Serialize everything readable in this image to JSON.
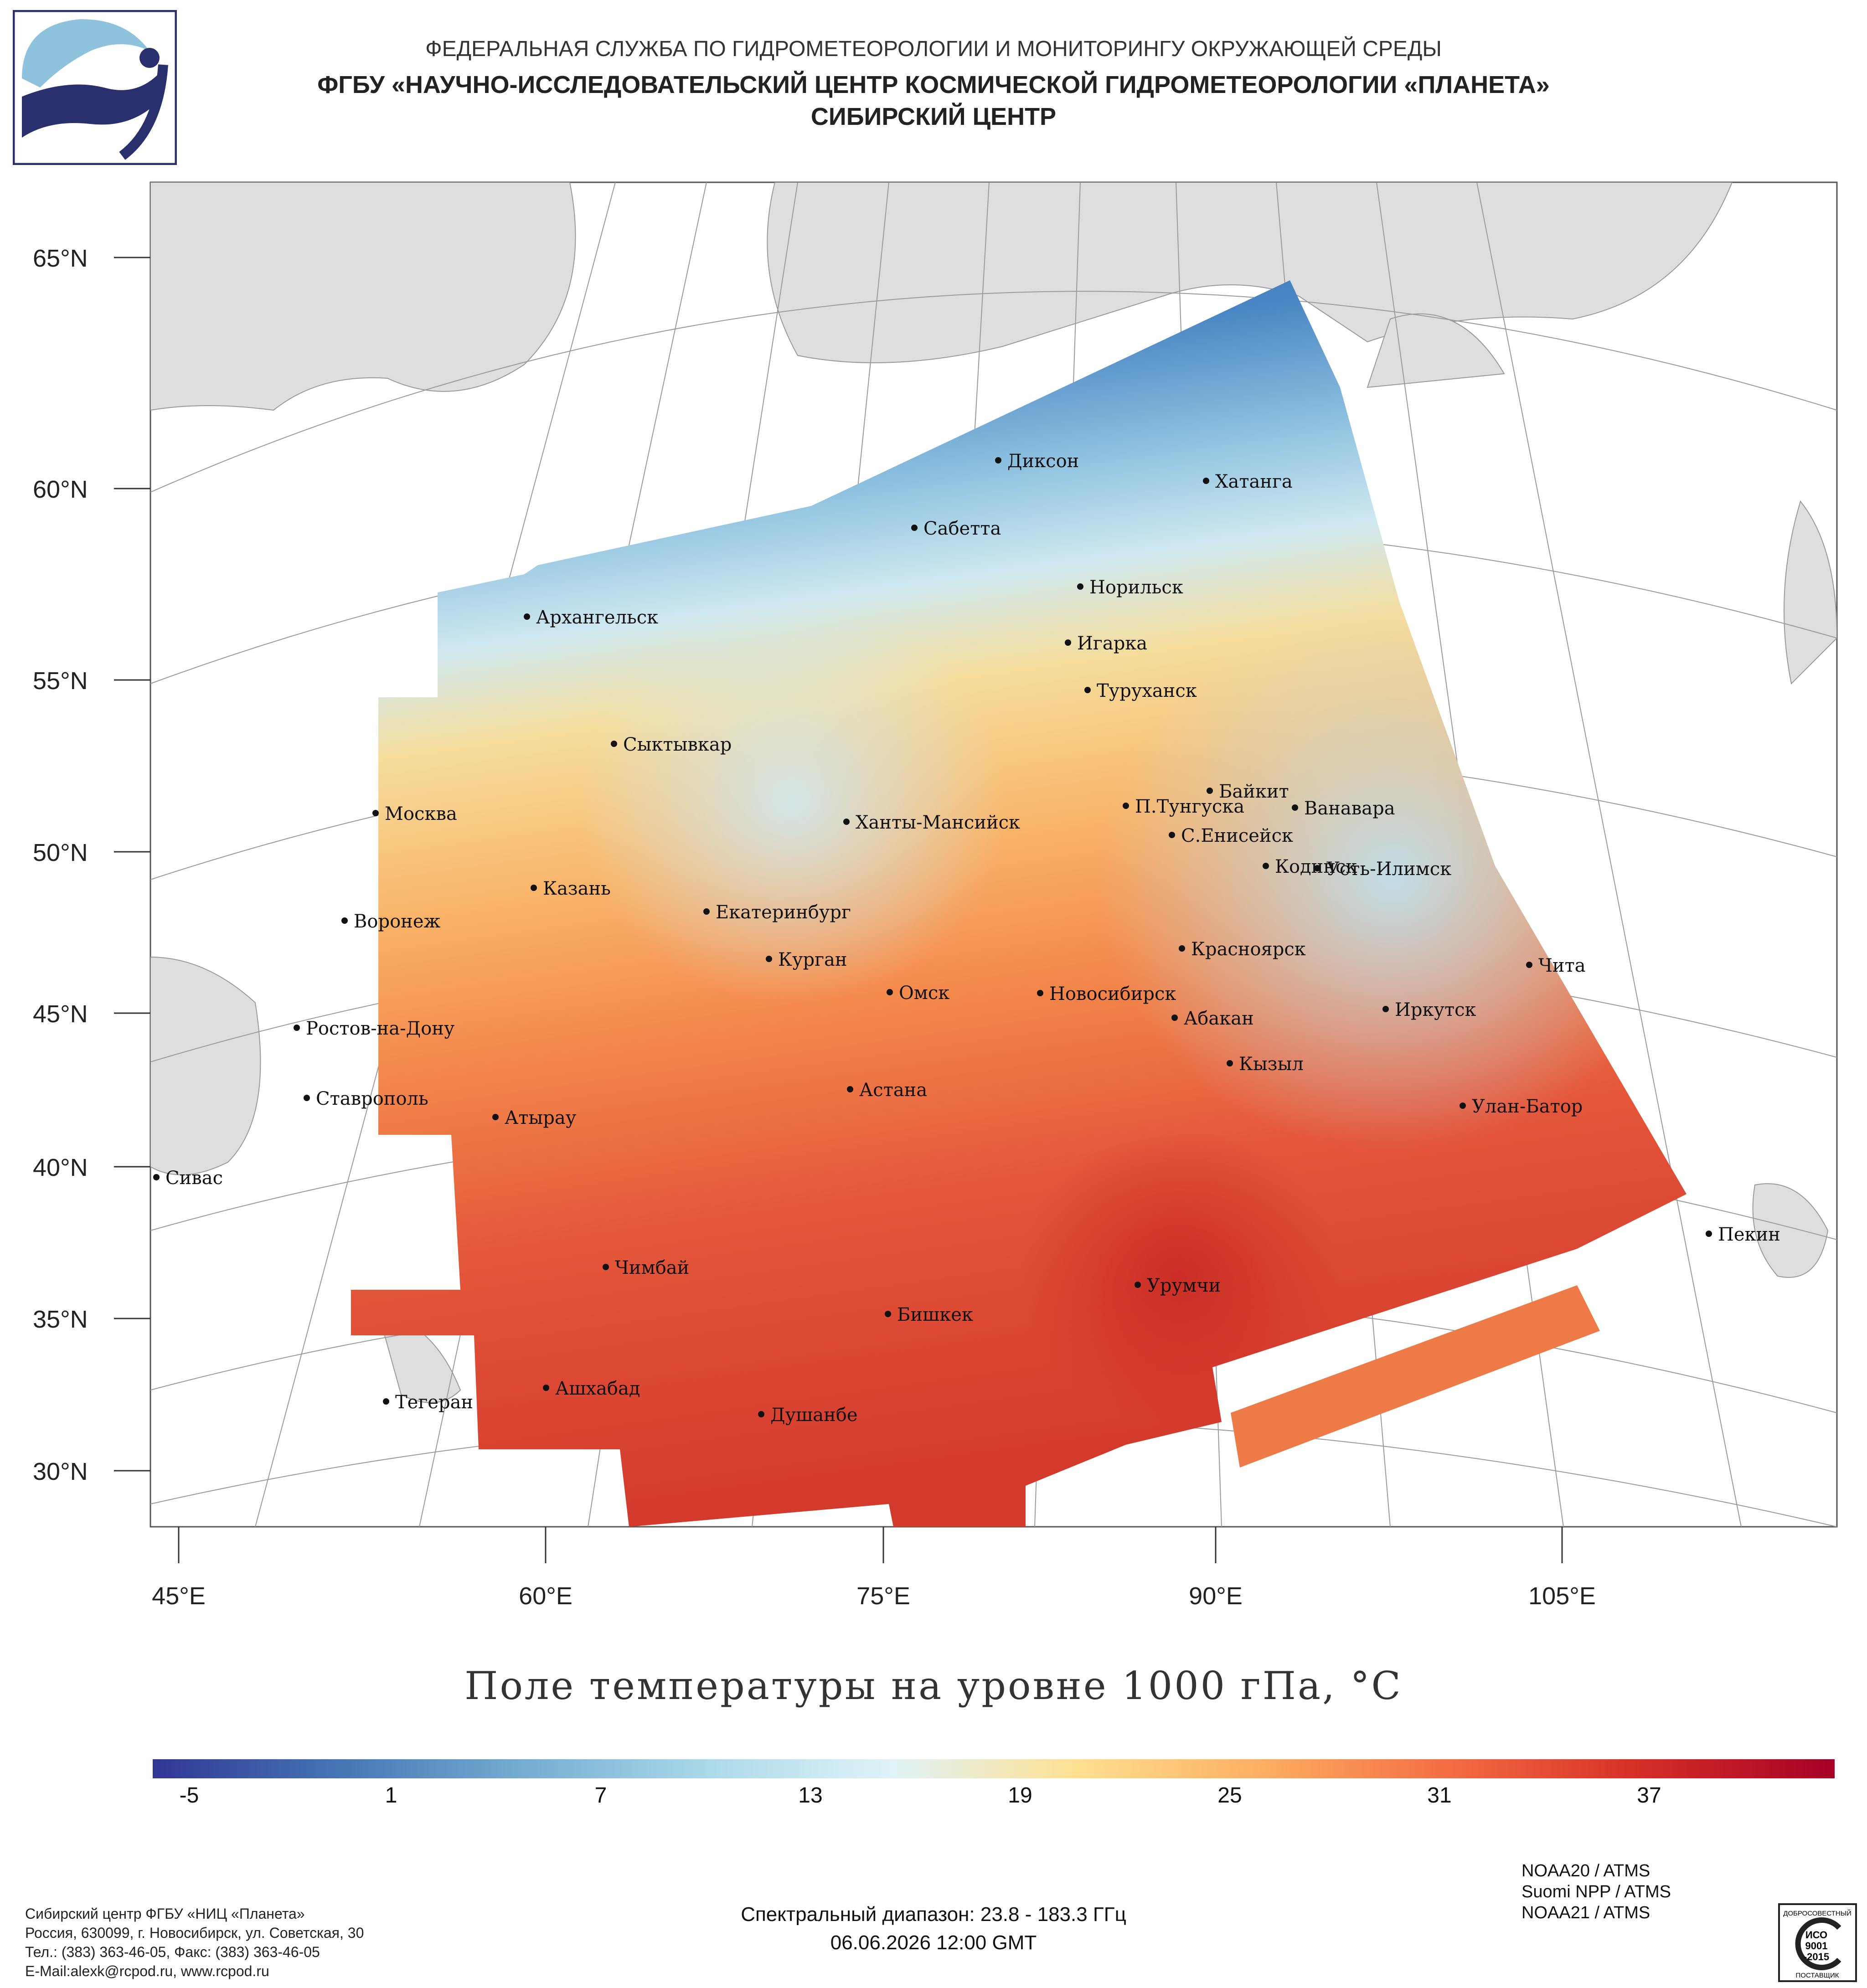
{
  "header": {
    "line1": "ФЕДЕРАЛЬНАЯ СЛУЖБА ПО ГИДРОМЕТЕОРОЛОГИИ И МОНИТОРИНГУ ОКРУЖАЮЩЕЙ СРЕДЫ",
    "line2": "ФГБУ «НАУЧНО-ИССЛЕДОВАТЕЛЬСКИЙ ЦЕНТР КОСМИЧЕСКОЙ ГИДРОМЕТЕОРОЛОГИИ «ПЛАНЕТА»",
    "line3": "СИБИРСКИЙ ЦЕНТР"
  },
  "map": {
    "lat_labels": [
      "65°N",
      "60°N",
      "55°N",
      "50°N",
      "45°N",
      "40°N",
      "35°N",
      "30°N"
    ],
    "lon_labels": [
      "45°E",
      "60°E",
      "75°E",
      "90°E",
      "105°E"
    ],
    "cities": [
      {
        "name": "Диксон",
        "lon": 80.5,
        "lat": 73.5
      },
      {
        "name": "Хатанга",
        "lon": 102.5,
        "lat": 72.0
      },
      {
        "name": "Сабетта",
        "lon": 72.0,
        "lat": 71.3
      },
      {
        "name": "Норильск",
        "lon": 88.2,
        "lat": 69.3
      },
      {
        "name": "Архангельск",
        "lon": 40.5,
        "lat": 64.5
      },
      {
        "name": "Игарка",
        "lon": 86.6,
        "lat": 67.5
      },
      {
        "name": "Туруханск",
        "lon": 87.9,
        "lat": 65.8
      },
      {
        "name": "Сыктывкар",
        "lon": 50.8,
        "lat": 61.7
      },
      {
        "name": "Байкит",
        "lon": 96.4,
        "lat": 61.7
      },
      {
        "name": "П.Тунгуска",
        "lon": 90.1,
        "lat": 61.6
      },
      {
        "name": "Ванавара",
        "lon": 102.3,
        "lat": 60.3
      },
      {
        "name": "Москва",
        "lon": 37.6,
        "lat": 55.8
      },
      {
        "name": "Ханты-Мансийск",
        "lon": 69.0,
        "lat": 61.0
      },
      {
        "name": "С.Енисейск",
        "lon": 92.0,
        "lat": 58.4
      },
      {
        "name": "Кодинск",
        "lon": 99.2,
        "lat": 58.6
      },
      {
        "name": "Усть-Илимск",
        "lon": 102.7,
        "lat": 58.0
      },
      {
        "name": "Казань",
        "lon": 49.1,
        "lat": 55.8
      },
      {
        "name": "Екатеринбург",
        "lon": 60.6,
        "lat": 56.8
      },
      {
        "name": "Воронеж",
        "lon": 39.2,
        "lat": 51.7
      },
      {
        "name": "Курган",
        "lon": 65.3,
        "lat": 55.4
      },
      {
        "name": "Красноярск",
        "lon": 92.9,
        "lat": 56.0
      },
      {
        "name": "Чита",
        "lon": 113.5,
        "lat": 52.0
      },
      {
        "name": "Омск",
        "lon": 73.4,
        "lat": 55.0
      },
      {
        "name": "Новосибирск",
        "lon": 82.9,
        "lat": 55.0
      },
      {
        "name": "Ростов-на-Дону",
        "lon": 39.7,
        "lat": 47.2
      },
      {
        "name": "Абакан",
        "lon": 91.4,
        "lat": 53.7
      },
      {
        "name": "Иркутск",
        "lon": 104.3,
        "lat": 52.3
      },
      {
        "name": "Кызыл",
        "lon": 94.4,
        "lat": 51.7
      },
      {
        "name": "Астана",
        "lon": 71.4,
        "lat": 51.2
      },
      {
        "name": "Ставрополь",
        "lon": 42.0,
        "lat": 45.0
      },
      {
        "name": "Атырау",
        "lon": 51.9,
        "lat": 47.1
      },
      {
        "name": "Улан-Батор",
        "lon": 106.9,
        "lat": 47.9
      },
      {
        "name": "Сивас",
        "lon": 37.0,
        "lat": 39.7
      },
      {
        "name": "Пекин",
        "lon": 116.4,
        "lat": 39.9
      },
      {
        "name": "Чимбай",
        "lon": 59.8,
        "lat": 42.9
      },
      {
        "name": "Урумчи",
        "lon": 87.6,
        "lat": 43.8
      },
      {
        "name": "Бишкек",
        "lon": 74.6,
        "lat": 42.9
      },
      {
        "name": "Ашхабад",
        "lon": 58.4,
        "lat": 37.9
      },
      {
        "name": "Тегеран",
        "lon": 51.4,
        "lat": 35.7
      },
      {
        "name": "Душанбе",
        "lon": 68.8,
        "lat": 38.6
      }
    ]
  },
  "title": "Поле температуры на уровне 1000 гПа, °C",
  "colorbar": {
    "min": -8,
    "max": 40,
    "tick_labels": [
      "-5",
      "1",
      "7",
      "13",
      "19",
      "25",
      "31",
      "37"
    ],
    "colors": [
      "#313695",
      "#4575b4",
      "#74add1",
      "#abd9e9",
      "#e0f3f8",
      "#fee090",
      "#fdae61",
      "#f46d43",
      "#d73027",
      "#a50026"
    ]
  },
  "footer": {
    "org_lines": [
      "Сибирский центр ФГБУ «НИЦ «Планета»",
      "Россия, 630099, г. Новосибирск, ул. Советская, 30",
      "Тел.: (383) 363-46-05, Факс: (383) 363-46-05",
      "E-Mail:alexk@rcpod.ru, www.rcpod.ru"
    ],
    "spectral": "Спектральный диапазон: 23.8 - 183.3 ГГц",
    "datetime": "06.06.2026 12:00 GMT",
    "instruments": [
      "NOAA20 / ATMS",
      "Suomi NPP / ATMS",
      "NOAA21 / ATMS"
    ],
    "iso_top": "ДОБРОСОВЕСТНЫЙ",
    "iso_mid1": "ИСО",
    "iso_mid2": "9001",
    "iso_mid3": "-2015",
    "iso_bottom": "ПОСТАВЩИК"
  }
}
